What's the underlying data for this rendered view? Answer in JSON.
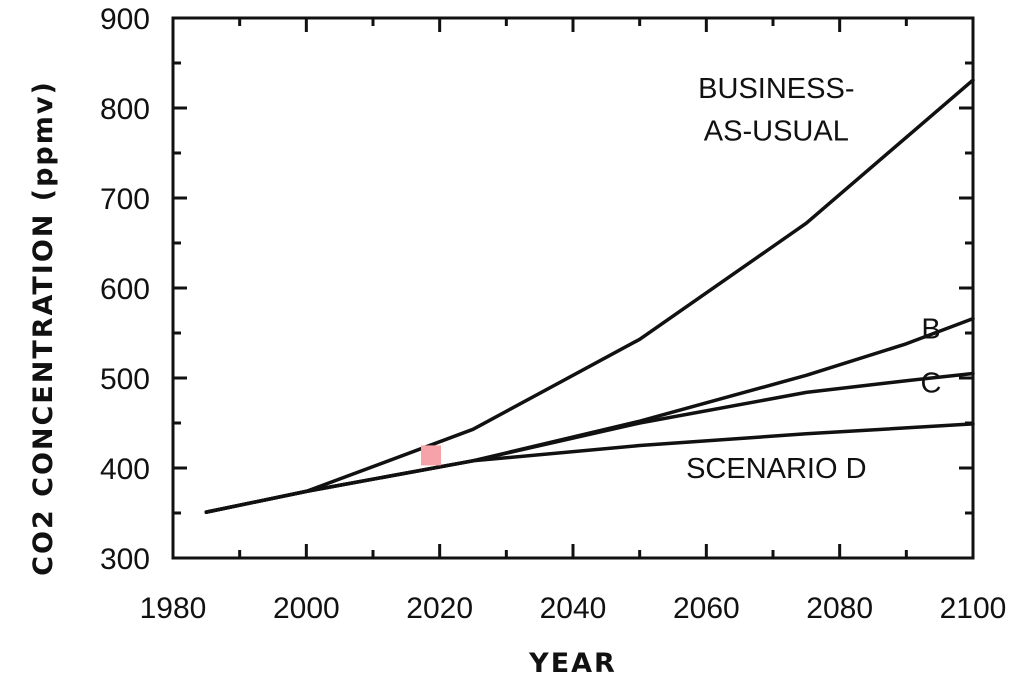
{
  "chart_data": {
    "type": "line",
    "title": "",
    "xlabel": "YEAR",
    "ylabel": "CO2  CONCENTRATION  (ppmv)",
    "xlim": [
      1980,
      2100
    ],
    "ylim": [
      300,
      900
    ],
    "x_ticks": [
      1980,
      2000,
      2020,
      2040,
      2060,
      2080,
      2100
    ],
    "y_ticks": [
      300,
      400,
      500,
      600,
      700,
      800,
      900
    ],
    "grid": false,
    "legend": "none",
    "series": [
      {
        "name": "BUSINESS-AS-USUAL",
        "x": [
          1985,
          2000,
          2025,
          2050,
          2075,
          2100
        ],
        "y": [
          351,
          374,
          443,
          543,
          672,
          831
        ]
      },
      {
        "name": "B",
        "x": [
          1985,
          2000,
          2025,
          2050,
          2075,
          2090,
          2100
        ],
        "y": [
          351,
          374,
          408,
          452,
          503,
          538,
          566
        ]
      },
      {
        "name": "C",
        "x": [
          1985,
          2000,
          2025,
          2050,
          2075,
          2090,
          2100
        ],
        "y": [
          351,
          374,
          408,
          450,
          484,
          497,
          505
        ]
      },
      {
        "name": "SCENARIO D",
        "x": [
          1985,
          2000,
          2025,
          2050,
          2075,
          2100
        ],
        "y": [
          351,
          374,
          408,
          425,
          438,
          449
        ]
      }
    ],
    "annotations": [
      {
        "id": "bau1",
        "text": "BUSINESS-",
        "x": 2070.5,
        "y": 822
      },
      {
        "id": "bau2",
        "text": "AS-USUAL",
        "x": 2070.5,
        "y": 775
      },
      {
        "id": "b",
        "text": "B",
        "x": 2093.7,
        "y": 555
      },
      {
        "id": "c",
        "text": "C",
        "x": 2093.7,
        "y": 495
      },
      {
        "id": "d",
        "text": "SCENARIO D",
        "x": 2070.5,
        "y": 400
      }
    ]
  },
  "colors": {
    "line": "#111111",
    "axis": "#111111",
    "highlight": "#f5a3a8"
  },
  "highlight_marker": {
    "x": 2018.7,
    "y": 414
  }
}
